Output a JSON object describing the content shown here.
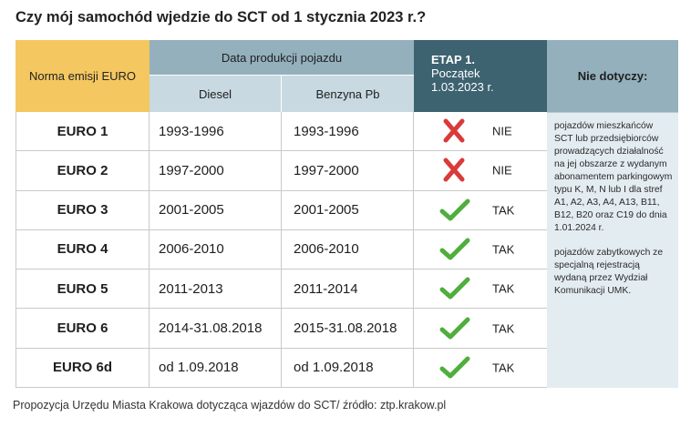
{
  "title": "Czy mój samochód wjedzie do SCT od 1 stycznia 2023 r.?",
  "header": {
    "norma": "Norma emisji EURO",
    "data_produkcji": "Data produkcji pojazdu",
    "diesel": "Diesel",
    "benzyna": "Benzyna Pb",
    "etap_line1": "ETAP 1.",
    "etap_line2": "Początek",
    "etap_line3": "1.03.2023 r.",
    "nie_dotyczy": "Nie dotyczy:"
  },
  "rows": [
    {
      "norma": "EURO 1",
      "diesel": "1993-1996",
      "benzyna": "1993-1996",
      "status": "NIE",
      "icon": "cross-icon"
    },
    {
      "norma": "EURO 2",
      "diesel": "1997-2000",
      "benzyna": "1997-2000",
      "status": "NIE",
      "icon": "cross-icon"
    },
    {
      "norma": "EURO 3",
      "diesel": "2001-2005",
      "benzyna": "2001-2005",
      "status": "TAK",
      "icon": "check-icon"
    },
    {
      "norma": "EURO 4",
      "diesel": "2006-2010",
      "benzyna": "2006-2010",
      "status": "TAK",
      "icon": "check-icon"
    },
    {
      "norma": "EURO 5",
      "diesel": "2011-2013",
      "benzyna": "2011-2014",
      "status": "TAK",
      "icon": "check-icon"
    },
    {
      "norma": "EURO 6",
      "diesel": "2014-31.08.2018",
      "benzyna": "2015-31.08.2018",
      "status": "TAK",
      "icon": "check-icon"
    },
    {
      "norma": "EURO 6d",
      "diesel": "od 1.09.2018",
      "benzyna": "od 1.09.2018",
      "status": "TAK",
      "icon": "check-icon"
    }
  ],
  "nie_dotyczy": {
    "p1": "pojazdów mieszkańców SCT lub przedsiębiorców prowadzących działalność na jej obszarze z wydanym abonamentem parkingowym typu K, M, N lub I dla stref A1, A2, A3, A4, A13, B11, B12, B20 oraz C19 do dnia 1.01.2024 r.",
    "p2": "pojazdów zabytkowych ze specjalną rejestracją wydaną przez Wydział Komunikacji UMK."
  },
  "caption": "Propozycja Urzędu Miasta Krakowa dotycząca wjazdów do SCT/ źródło: ztp.krakow.pl",
  "colors": {
    "norma_header": "#f4c760",
    "data_header": "#94b0bd",
    "sub_header": "#c8d9e1",
    "etap_header": "#3d6270",
    "nie_dotyczy_box": "#e3ecf1",
    "cross": "#d93a3a",
    "check": "#4fae3c"
  }
}
